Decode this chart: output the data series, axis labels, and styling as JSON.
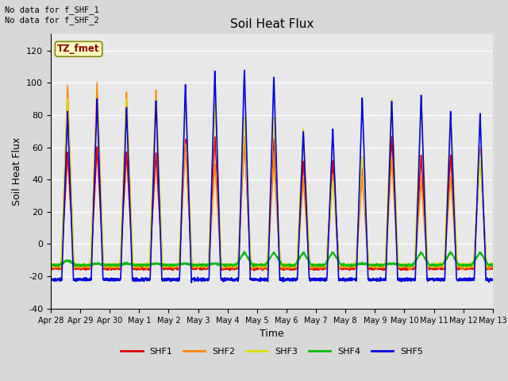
{
  "title": "Soil Heat Flux",
  "xlabel": "Time",
  "ylabel": "Soil Heat Flux",
  "ylim": [
    -40,
    130
  ],
  "yticks": [
    -40,
    -20,
    0,
    20,
    40,
    60,
    80,
    100,
    120
  ],
  "bg_color": "#e8e8e8",
  "annotation_text": "No data for f_SHF_1\nNo data for f_SHF_2",
  "legend_label": "TZ_fmet",
  "series_labels": [
    "SHF1",
    "SHF2",
    "SHF3",
    "SHF4",
    "SHF5"
  ],
  "series_colors": [
    "#dd0000",
    "#ff8800",
    "#dddd00",
    "#00bb00",
    "#0000dd"
  ],
  "num_days": 16,
  "tick_labels": [
    "Apr 28",
    "Apr 29",
    "Apr 30",
    "May 1",
    "May 2",
    "May 3",
    "May 4",
    "May 5",
    "May 6",
    "May 7",
    "May 8",
    "May 9",
    "May 10",
    "May 11",
    "May 12",
    "May 13"
  ],
  "line_width": 1.2,
  "fig_bg": "#d8d8d8"
}
